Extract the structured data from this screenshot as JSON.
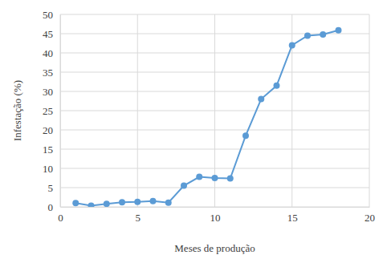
{
  "chart_data": {
    "type": "line",
    "x_label": "Meses de produção",
    "y_label": "Infestação (%)",
    "x": [
      1,
      2,
      3,
      4,
      5,
      6,
      7,
      8,
      9,
      10,
      11,
      12,
      13,
      14,
      15,
      16,
      17,
      18
    ],
    "values": [
      1.0,
      0.3,
      0.8,
      1.2,
      1.3,
      1.5,
      1.1,
      5.5,
      7.8,
      7.5,
      7.4,
      18.5,
      28.0,
      31.5,
      42.0,
      44.5,
      44.8,
      45.9
    ],
    "color": "#5b9bd5",
    "marker": "circle",
    "xlim": [
      0,
      20
    ],
    "xticks": [
      0,
      5,
      10,
      15,
      20
    ],
    "ylim": [
      0,
      50
    ],
    "yticks": [
      0,
      5,
      10,
      15,
      20,
      25,
      30,
      35,
      40,
      45,
      50
    ],
    "grid": true
  }
}
